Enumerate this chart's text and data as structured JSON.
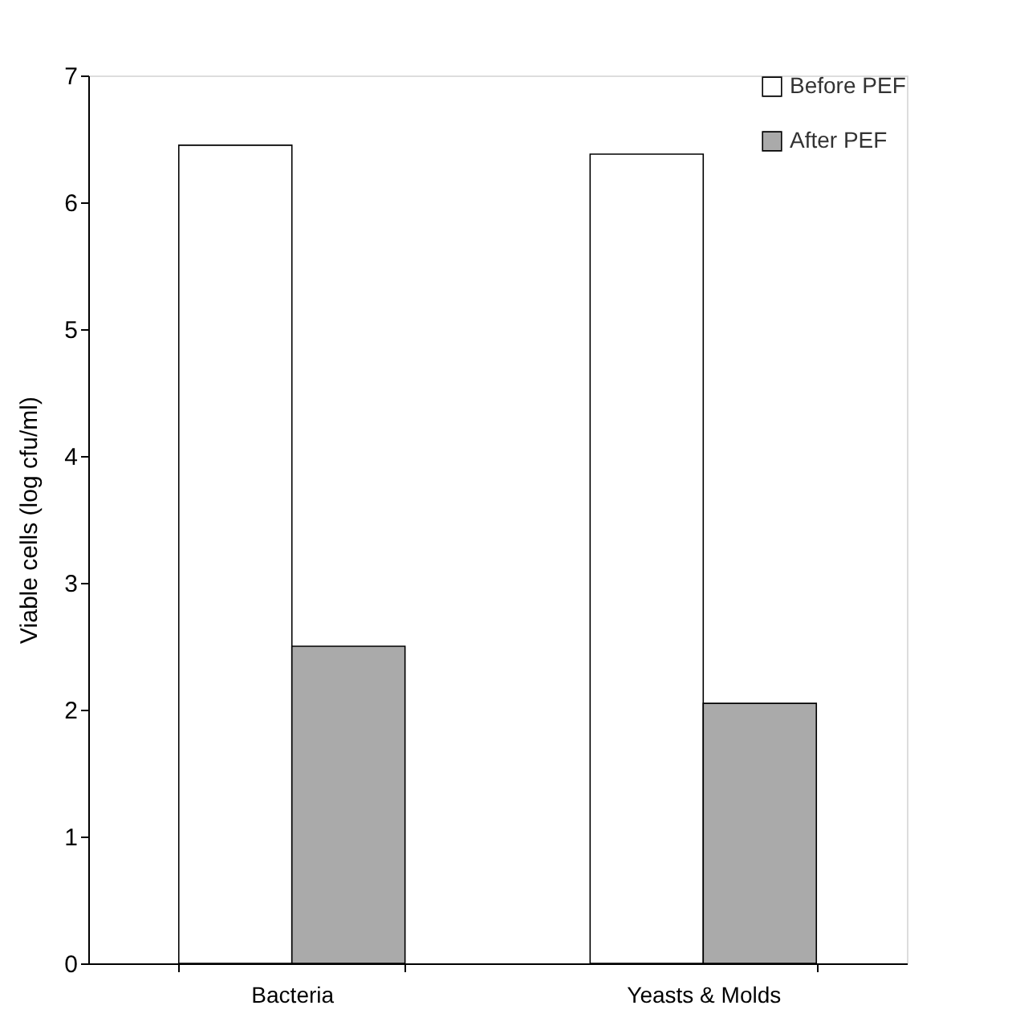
{
  "chart_data": {
    "type": "bar",
    "ylabel": "Viable cells (log cfu/ml)",
    "categories": [
      "Bacteria",
      "Yeasts & Molds"
    ],
    "series": [
      {
        "name": "Before PEF",
        "color": "#ffffff",
        "values": [
          6.45,
          6.38
        ]
      },
      {
        "name": "After PEF",
        "color": "#aaaaaa",
        "values": [
          2.5,
          2.05
        ]
      }
    ],
    "ylim": [
      0,
      7
    ],
    "yticks": [
      0,
      1,
      2,
      3,
      4,
      5,
      6,
      7
    ],
    "grid": false,
    "legend": "top right"
  }
}
